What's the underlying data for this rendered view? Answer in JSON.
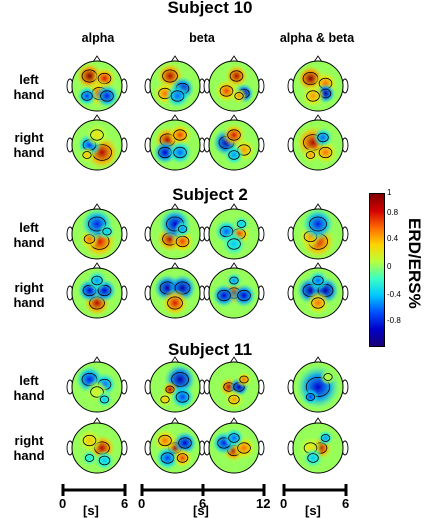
{
  "columns": {
    "alpha": "alpha",
    "beta": "beta",
    "alpha_beta": "alpha & beta"
  },
  "rows": {
    "left": [
      "left",
      "hand"
    ],
    "right": [
      "right",
      "hand"
    ]
  },
  "subjects": [
    {
      "title": "Subject 10"
    },
    {
      "title": "Subject 2"
    },
    {
      "title": "Subject 11"
    }
  ],
  "colorbar": {
    "label": "ERD/ERS%",
    "ticks": [
      "1",
      "0.8",
      "0.4",
      "0",
      "-0.4",
      "-0.8"
    ],
    "colors": [
      "#7f0000",
      "#d40000",
      "#ff6a00",
      "#ffd400",
      "#b8ff3c",
      "#3cffc4",
      "#00c8ff",
      "#0050ff",
      "#0000c8",
      "#1a0078"
    ]
  },
  "time_axes": [
    {
      "start": "0",
      "end": "6",
      "unit": "[s]"
    },
    {
      "start": "0",
      "mid": "6",
      "end": "12",
      "unit": "[s]"
    },
    {
      "start": "0",
      "end": "6",
      "unit": "[s]"
    }
  ],
  "maps": [
    {
      "id": "s10-left-alpha",
      "blobs": [
        [
          -0.3,
          -0.4,
          0.35,
          1
        ],
        [
          0.3,
          -0.3,
          0.3,
          0.8
        ],
        [
          0.1,
          0.3,
          0.35,
          0.7
        ],
        [
          -0.4,
          0.4,
          0.25,
          -0.6
        ],
        [
          0.4,
          0.4,
          0.3,
          -0.7
        ]
      ]
    },
    {
      "id": "s10-left-beta1",
      "blobs": [
        [
          -0.2,
          -0.4,
          0.35,
          0.9
        ],
        [
          0.3,
          0.1,
          0.3,
          -0.8
        ],
        [
          -0.4,
          0.3,
          0.3,
          0.6
        ],
        [
          0.1,
          0.4,
          0.3,
          -0.5
        ]
      ]
    },
    {
      "id": "s10-left-beta2",
      "blobs": [
        [
          0.1,
          -0.4,
          0.3,
          0.9
        ],
        [
          -0.3,
          0.2,
          0.3,
          0.7
        ],
        [
          0.4,
          0.3,
          0.25,
          -0.9
        ],
        [
          0.2,
          0.4,
          0.2,
          0.5
        ]
      ]
    },
    {
      "id": "s10-left-ab",
      "blobs": [
        [
          -0.3,
          -0.3,
          0.35,
          1
        ],
        [
          0.3,
          -0.1,
          0.3,
          0.6
        ],
        [
          0.3,
          0.3,
          0.25,
          -0.9
        ],
        [
          -0.2,
          0.4,
          0.3,
          0.5
        ]
      ]
    },
    {
      "id": "s10-right-alpha",
      "blobs": [
        [
          0.2,
          0.3,
          0.45,
          0.9
        ],
        [
          -0.3,
          0.0,
          0.3,
          -0.6
        ],
        [
          0.0,
          -0.4,
          0.3,
          0.3
        ],
        [
          -0.4,
          0.4,
          0.2,
          0.4
        ]
      ]
    },
    {
      "id": "s10-right-beta1",
      "blobs": [
        [
          -0.3,
          -0.2,
          0.35,
          0.9
        ],
        [
          0.2,
          -0.4,
          0.3,
          0.7
        ],
        [
          -0.4,
          0.3,
          0.3,
          -0.8
        ],
        [
          0.2,
          0.3,
          0.3,
          -0.5
        ]
      ]
    },
    {
      "id": "s10-right-beta2",
      "blobs": [
        [
          -0.3,
          -0.1,
          0.35,
          -0.9
        ],
        [
          0.4,
          0.2,
          0.3,
          0.5
        ],
        [
          0.0,
          -0.4,
          0.3,
          0.8
        ],
        [
          0.0,
          0.4,
          0.25,
          -0.4
        ]
      ]
    },
    {
      "id": "s10-right-ab",
      "blobs": [
        [
          -0.2,
          -0.1,
          0.45,
          0.9
        ],
        [
          0.3,
          0.3,
          0.3,
          0.6
        ],
        [
          0.2,
          -0.3,
          0.25,
          -0.5
        ],
        [
          -0.3,
          0.4,
          0.2,
          0.5
        ]
      ]
    },
    {
      "id": "s2-left-alpha",
      "blobs": [
        [
          0.1,
          0.3,
          0.45,
          0.8
        ],
        [
          -0.3,
          0.2,
          0.25,
          0.6
        ],
        [
          0.0,
          -0.4,
          0.4,
          -0.7
        ],
        [
          0.4,
          -0.1,
          0.2,
          -0.3
        ]
      ]
    },
    {
      "id": "s2-left-beta1",
      "blobs": [
        [
          -0.2,
          0.2,
          0.35,
          0.9
        ],
        [
          0.3,
          0.3,
          0.3,
          0.7
        ],
        [
          0.0,
          -0.4,
          0.4,
          -0.8
        ],
        [
          0.3,
          -0.2,
          0.2,
          -0.4
        ]
      ]
    },
    {
      "id": "s2-left-beta2",
      "blobs": [
        [
          0.2,
          0.0,
          0.3,
          0.7
        ],
        [
          -0.3,
          -0.1,
          0.3,
          -0.5
        ],
        [
          0.0,
          0.4,
          0.3,
          -0.3
        ],
        [
          0.3,
          -0.4,
          0.2,
          -0.3
        ]
      ]
    },
    {
      "id": "s2-left-ab",
      "blobs": [
        [
          0.0,
          0.3,
          0.45,
          0.8
        ],
        [
          -0.3,
          0.1,
          0.3,
          0.5
        ],
        [
          0.0,
          -0.4,
          0.4,
          -0.7
        ]
      ]
    },
    {
      "id": "s2-right-alpha",
      "blobs": [
        [
          0.0,
          0.4,
          0.35,
          0.9
        ],
        [
          -0.3,
          -0.1,
          0.3,
          -0.8
        ],
        [
          0.3,
          -0.1,
          0.3,
          -0.8
        ],
        [
          0.0,
          -0.5,
          0.25,
          -0.4
        ]
      ]
    },
    {
      "id": "s2-right-beta1",
      "blobs": [
        [
          -0.3,
          -0.2,
          0.35,
          -0.9
        ],
        [
          0.3,
          -0.2,
          0.35,
          -0.9
        ],
        [
          0.0,
          0.4,
          0.35,
          0.8
        ]
      ]
    },
    {
      "id": "s2-right-beta2",
      "blobs": [
        [
          0.0,
          0.0,
          0.3,
          0.9
        ],
        [
          -0.4,
          0.1,
          0.3,
          -0.8
        ],
        [
          0.4,
          0.1,
          0.3,
          -0.8
        ],
        [
          0.0,
          -0.5,
          0.2,
          -0.4
        ]
      ]
    },
    {
      "id": "s2-right-ab",
      "blobs": [
        [
          -0.3,
          -0.1,
          0.35,
          -0.9
        ],
        [
          0.3,
          -0.1,
          0.35,
          -0.9
        ],
        [
          0.0,
          0.4,
          0.3,
          0.6
        ],
        [
          0.0,
          -0.5,
          0.25,
          -0.5
        ]
      ]
    },
    {
      "id": "s11-left-alpha",
      "blobs": [
        [
          -0.3,
          -0.3,
          0.35,
          -0.7
        ],
        [
          0.3,
          -0.1,
          0.3,
          -0.5
        ],
        [
          0.0,
          0.2,
          0.3,
          0.2
        ],
        [
          0.3,
          0.5,
          0.2,
          -0.3
        ]
      ]
    },
    {
      "id": "s11-left-beta1",
      "blobs": [
        [
          0.2,
          -0.3,
          0.4,
          -0.9
        ],
        [
          -0.2,
          0.1,
          0.2,
          0.9
        ],
        [
          0.3,
          0.4,
          0.3,
          -0.6
        ],
        [
          -0.4,
          0.5,
          0.2,
          0.4
        ]
      ]
    },
    {
      "id": "s11-left-beta2",
      "blobs": [
        [
          -0.2,
          0.0,
          0.25,
          0.9
        ],
        [
          0.2,
          0.0,
          0.25,
          -0.9
        ],
        [
          0.4,
          -0.3,
          0.2,
          0.6
        ],
        [
          0.0,
          0.5,
          0.25,
          0.5
        ]
      ]
    },
    {
      "id": "s11-left-ab",
      "blobs": [
        [
          0.0,
          0.0,
          0.55,
          -0.8
        ],
        [
          -0.3,
          0.4,
          0.2,
          -0.6
        ],
        [
          0.4,
          -0.4,
          0.2,
          0.1
        ]
      ]
    },
    {
      "id": "s11-right-alpha",
      "blobs": [
        [
          0.2,
          0.0,
          0.35,
          0.9
        ],
        [
          -0.3,
          -0.3,
          0.3,
          0.4
        ],
        [
          0.3,
          0.5,
          0.25,
          -0.3
        ],
        [
          -0.3,
          0.4,
          0.2,
          -0.2
        ]
      ]
    },
    {
      "id": "s11-right-beta1",
      "blobs": [
        [
          0.0,
          0.0,
          0.3,
          0.9
        ],
        [
          -0.4,
          -0.3,
          0.3,
          0.6
        ],
        [
          0.4,
          -0.2,
          0.3,
          -0.8
        ],
        [
          -0.3,
          0.4,
          0.3,
          -0.6
        ],
        [
          0.3,
          0.4,
          0.25,
          0.7
        ]
      ]
    },
    {
      "id": "s11-right-beta2",
      "blobs": [
        [
          0.0,
          0.1,
          0.3,
          0.9
        ],
        [
          -0.4,
          -0.2,
          0.3,
          -0.7
        ],
        [
          0.4,
          0.0,
          0.3,
          0.6
        ],
        [
          0.0,
          -0.4,
          0.25,
          -0.5
        ]
      ]
    },
    {
      "id": "s11-right-ab",
      "blobs": [
        [
          0.1,
          0.0,
          0.3,
          0.9
        ],
        [
          -0.3,
          0.0,
          0.3,
          0.3
        ],
        [
          0.3,
          -0.4,
          0.2,
          -0.4
        ],
        [
          -0.2,
          0.4,
          0.25,
          -0.3
        ]
      ]
    }
  ]
}
